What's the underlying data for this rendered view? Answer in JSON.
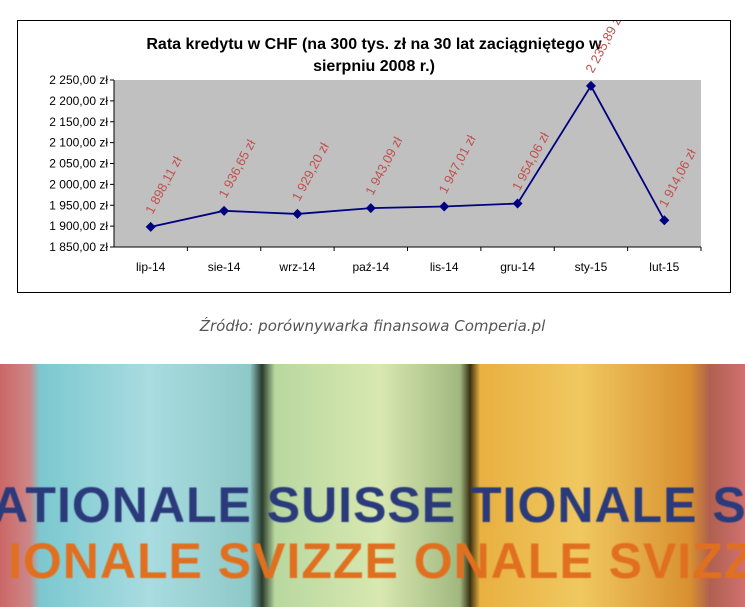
{
  "chart_data": {
    "type": "line",
    "title": "Rata kredytu w CHF (na 300 tys. zł na 30 lat zaciągniętego w sierpniu 2008 r.)",
    "title_lines": [
      "Rata kredytu w CHF (na 300 tys. zł na 30 lat zaciągniętego w",
      "sierpniu 2008 r.)"
    ],
    "categories": [
      "lip-14",
      "sie-14",
      "wrz-14",
      "paź-14",
      "lis-14",
      "gru-14",
      "sty-15",
      "lut-15"
    ],
    "values": [
      1898.11,
      1936.65,
      1929.2,
      1943.09,
      1947.01,
      1954.06,
      2235.89,
      1914.06
    ],
    "data_labels": [
      "1 898,11 zł",
      "1 936,65 zł",
      "1 929,20 zł",
      "1 943,09 zł",
      "1 947,01 zł",
      "1 954,06 zł",
      "2 235,89 zł",
      "1 914,06 zł"
    ],
    "yticks": [
      1850,
      1900,
      1950,
      2000,
      2050,
      2100,
      2150,
      2200,
      2250
    ],
    "ytick_labels": [
      "1 850,00 zł",
      "1 900,00 zł",
      "1 950,00 zł",
      "2 000,00 zł",
      "2 050,00 zł",
      "2 100,00 zł",
      "2 150,00 zł",
      "2 200,00 zł",
      "2 250,00 zł"
    ],
    "ylim": [
      1850,
      2250
    ],
    "grid": false,
    "legend": "none",
    "colors": {
      "line": "#000080",
      "marker": "#000080",
      "plot_bg": "#c0c0c0",
      "label": "#c0504d"
    }
  },
  "caption": "Źródło: porównywarka finansowa Comperia.pl",
  "photo": {
    "line1": "ATIONALE SUISSE  TIONALE SUISSE  TIONALE SUISSE",
    "line2": "IONALE SVIZZE  ONALE SVIZZE  IONALE SVIZZE"
  }
}
